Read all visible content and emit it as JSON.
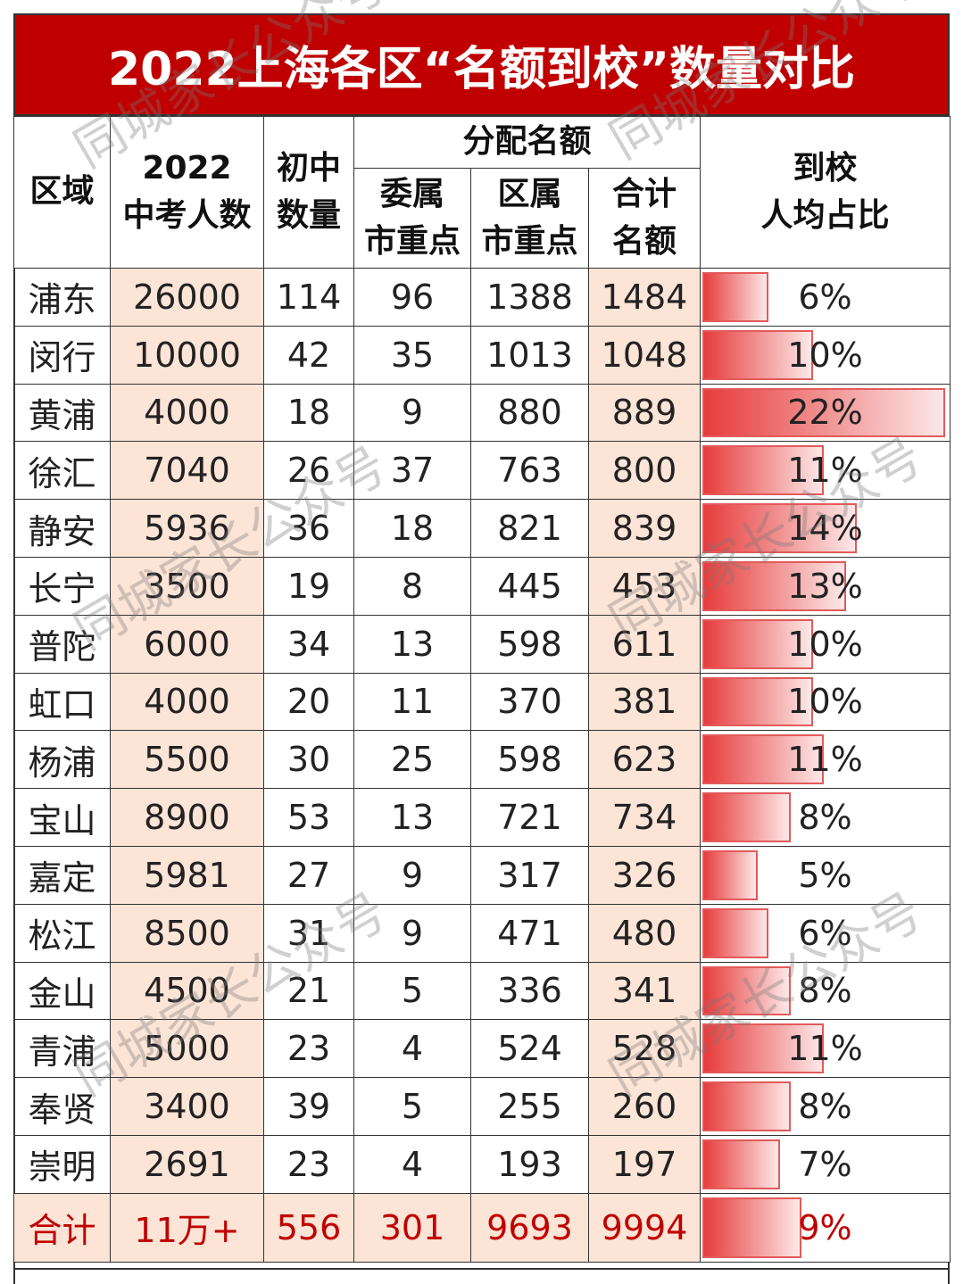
{
  "title": "2022上海各区“名额到校”数量对比",
  "headers": {
    "region": "区域",
    "exam_takers": "2022\n中考人数",
    "junior_high_count": "初中\n数量",
    "allocation_group": "分配名额",
    "city_key": "委属\n市重点",
    "district_key": "区属\n市重点",
    "total_quota": "合计\n名额",
    "ratio": "到校\n人均占比"
  },
  "rows": [
    {
      "region": "浦东",
      "takers": "26000",
      "schools": "114",
      "city": "96",
      "district": "1388",
      "total": "1484",
      "ratio": "6%",
      "ratio_value": 6
    },
    {
      "region": "闵行",
      "takers": "10000",
      "schools": "42",
      "city": "35",
      "district": "1013",
      "total": "1048",
      "ratio": "10%",
      "ratio_value": 10
    },
    {
      "region": "黄浦",
      "takers": "4000",
      "schools": "18",
      "city": "9",
      "district": "880",
      "total": "889",
      "ratio": "22%",
      "ratio_value": 22
    },
    {
      "region": "徐汇",
      "takers": "7040",
      "schools": "26",
      "city": "37",
      "district": "763",
      "total": "800",
      "ratio": "11%",
      "ratio_value": 11
    },
    {
      "region": "静安",
      "takers": "5936",
      "schools": "36",
      "city": "18",
      "district": "821",
      "total": "839",
      "ratio": "14%",
      "ratio_value": 14
    },
    {
      "region": "长宁",
      "takers": "3500",
      "schools": "19",
      "city": "8",
      "district": "445",
      "total": "453",
      "ratio": "13%",
      "ratio_value": 13
    },
    {
      "region": "普陀",
      "takers": "6000",
      "schools": "34",
      "city": "13",
      "district": "598",
      "total": "611",
      "ratio": "10%",
      "ratio_value": 10
    },
    {
      "region": "虹口",
      "takers": "4000",
      "schools": "20",
      "city": "11",
      "district": "370",
      "total": "381",
      "ratio": "10%",
      "ratio_value": 10
    },
    {
      "region": "杨浦",
      "takers": "5500",
      "schools": "30",
      "city": "25",
      "district": "598",
      "total": "623",
      "ratio": "11%",
      "ratio_value": 11
    },
    {
      "region": "宝山",
      "takers": "8900",
      "schools": "53",
      "city": "13",
      "district": "721",
      "total": "734",
      "ratio": "8%",
      "ratio_value": 8
    },
    {
      "region": "嘉定",
      "takers": "5981",
      "schools": "27",
      "city": "9",
      "district": "317",
      "total": "326",
      "ratio": "5%",
      "ratio_value": 5
    },
    {
      "region": "松江",
      "takers": "8500",
      "schools": "31",
      "city": "9",
      "district": "471",
      "total": "480",
      "ratio": "6%",
      "ratio_value": 6
    },
    {
      "region": "金山",
      "takers": "4500",
      "schools": "21",
      "city": "5",
      "district": "336",
      "total": "341",
      "ratio": "8%",
      "ratio_value": 8
    },
    {
      "region": "青浦",
      "takers": "5000",
      "schools": "23",
      "city": "4",
      "district": "524",
      "total": "528",
      "ratio": "11%",
      "ratio_value": 11
    },
    {
      "region": "奉贤",
      "takers": "3400",
      "schools": "39",
      "city": "5",
      "district": "255",
      "total": "260",
      "ratio": "8%",
      "ratio_value": 8
    },
    {
      "region": "崇明",
      "takers": "2691",
      "schools": "23",
      "city": "4",
      "district": "193",
      "total": "197",
      "ratio": "7%",
      "ratio_value": 7
    }
  ],
  "total_row": {
    "region": "合计",
    "takers": "11万+",
    "schools": "556",
    "city": "301",
    "district": "9693",
    "total": "9994",
    "ratio": "9%",
    "ratio_value": 9
  },
  "watermark_text": "同城家长公众号",
  "colors": {
    "title_bg": "#c00000",
    "pink_fill": "#fce4d6",
    "total_text": "#c00000",
    "bar": "#e73c3c"
  }
}
